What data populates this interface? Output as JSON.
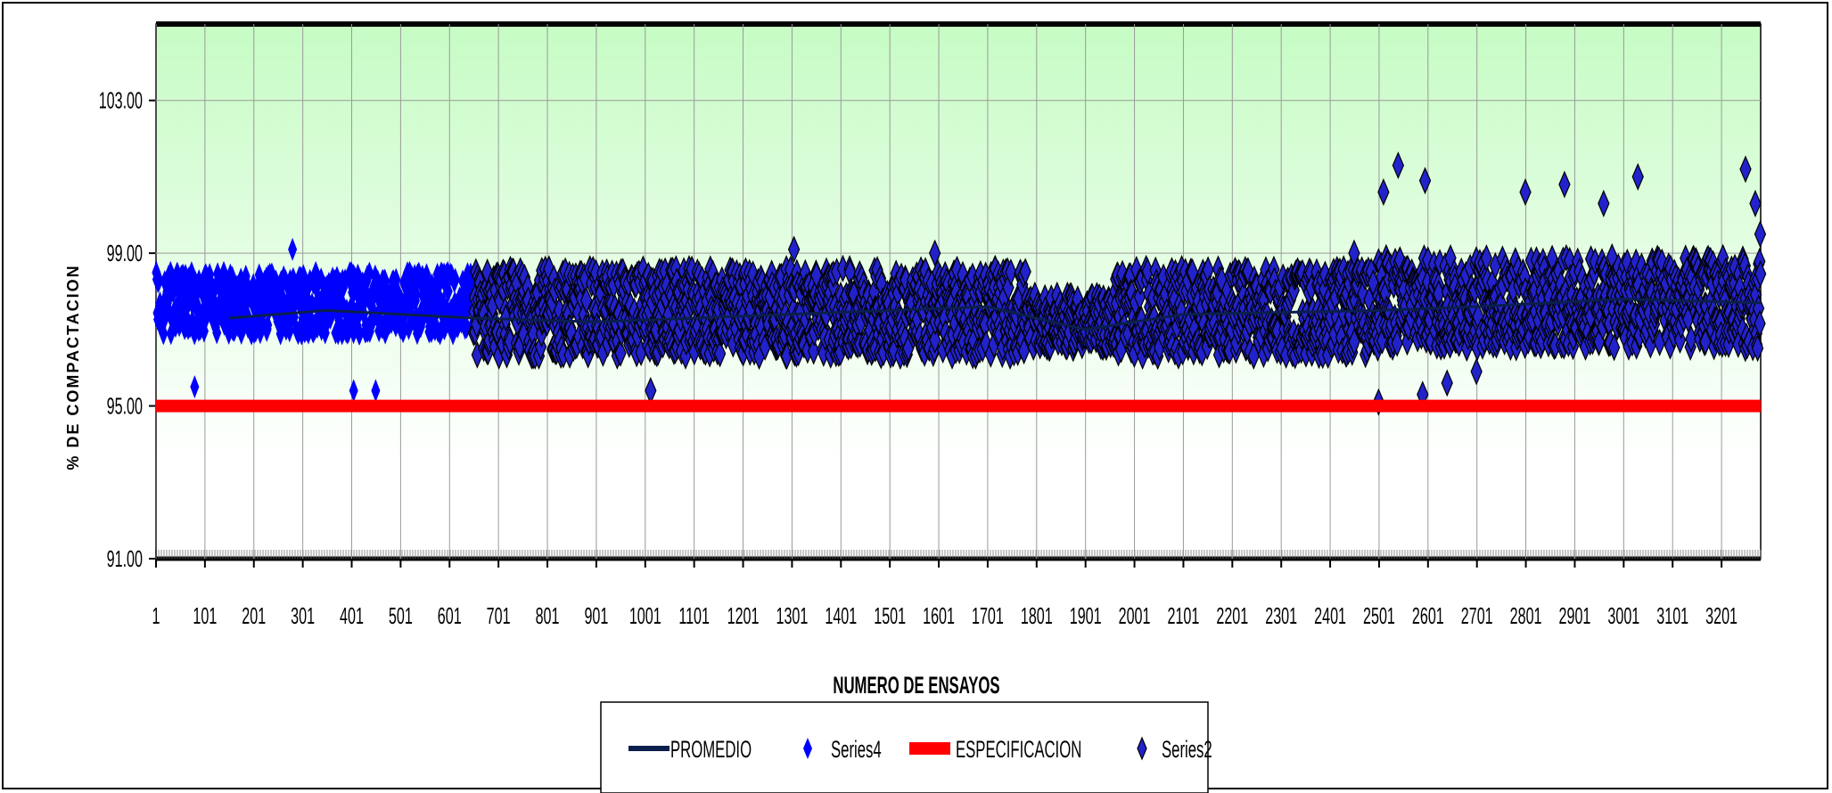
{
  "chart_data": {
    "type": "scatter",
    "xlabel": "NUMERO DE ENSAYOS",
    "ylabel": "% DE COMPACTACION",
    "x_ticks": [
      "1",
      "101",
      "201",
      "301",
      "401",
      "501",
      "601",
      "701",
      "801",
      "901",
      "1001",
      "1101",
      "1201",
      "1301",
      "1401",
      "1501",
      "1601",
      "1701",
      "1801",
      "1901",
      "2001",
      "2101",
      "2201",
      "2301",
      "2401",
      "2501",
      "2601",
      "2701",
      "2801",
      "2901",
      "3001",
      "3101",
      "3201"
    ],
    "y_ticks": [
      "91.00",
      "95.00",
      "99.00",
      "103.00"
    ],
    "xlim": [
      1,
      3281
    ],
    "ylim": [
      91,
      105
    ],
    "grid": true,
    "legend_position": "bottom",
    "colors": {
      "promedio": "#0b1f4d",
      "series4": "#0000ff",
      "especificacion": "#ff0000",
      "series2": "#2222cc",
      "series2_edge": "#000000",
      "plot_bg_top": "#c6fcc4",
      "plot_bg_bottom": "#ffffff"
    },
    "series": [
      {
        "name": "PROMEDIO",
        "type": "line",
        "points": [
          [
            150,
            97.3
          ],
          [
            350,
            97.5
          ],
          [
            650,
            97.3
          ],
          [
            900,
            97.2
          ],
          [
            1300,
            97.4
          ],
          [
            1700,
            97.6
          ],
          [
            1900,
            97.0
          ],
          [
            2100,
            97.4
          ],
          [
            2500,
            97.5
          ],
          [
            2700,
            97.6
          ],
          [
            3000,
            97.8
          ],
          [
            3281,
            97.7
          ]
        ]
      },
      {
        "name": "Series4",
        "type": "scatter",
        "x_range": [
          1,
          650
        ],
        "y_range": [
          96.6,
          98.5
        ],
        "approx_count": 650,
        "outliers": [
          [
            80,
            95.5
          ],
          [
            280,
            99.1
          ],
          [
            405,
            95.4
          ],
          [
            450,
            95.4
          ]
        ]
      },
      {
        "name": "ESPECIFICACION",
        "type": "line",
        "points": [
          [
            1,
            95.0
          ],
          [
            3281,
            95.0
          ]
        ]
      },
      {
        "name": "Series2",
        "type": "scatter",
        "x_range": [
          650,
          3281
        ],
        "y_range": [
          96.3,
          98.6
        ],
        "approx_count": 2630,
        "outliers": [
          [
            1012,
            95.4
          ],
          [
            1305,
            99.1
          ],
          [
            1593,
            99.0
          ],
          [
            2450,
            99.0
          ],
          [
            2500,
            95.1
          ],
          [
            2510,
            100.6
          ],
          [
            2540,
            101.3
          ],
          [
            2590,
            95.3
          ],
          [
            2595,
            100.9
          ],
          [
            2640,
            95.6
          ],
          [
            2700,
            95.9
          ],
          [
            2800,
            100.6
          ],
          [
            2880,
            100.8
          ],
          [
            2960,
            100.3
          ],
          [
            3030,
            101.0
          ],
          [
            3250,
            101.2
          ],
          [
            3270,
            100.3
          ],
          [
            3280,
            99.5
          ]
        ]
      }
    ]
  }
}
